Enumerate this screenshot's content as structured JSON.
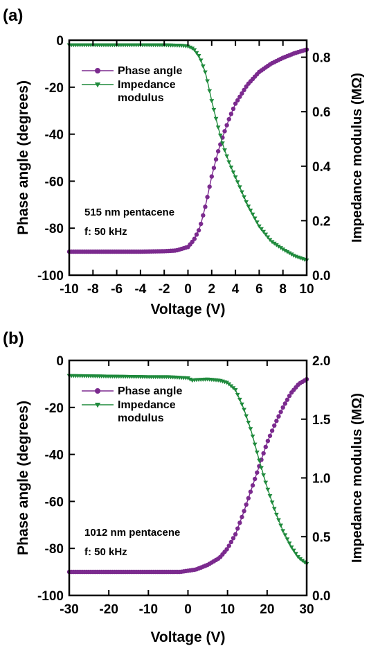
{
  "chart_data": [
    {
      "panel_label": "(a)",
      "type": "scatter",
      "xlabel": "Voltage (V)",
      "ylabel_left": "Phase angle  (degrees)",
      "ylabel_right": "Impedance modulus (MΩ)",
      "xlim": [
        -10,
        10
      ],
      "xticks": [
        -10,
        -8,
        -6,
        -4,
        -2,
        0,
        2,
        4,
        6,
        8,
        10
      ],
      "ylim_left": [
        -100,
        0
      ],
      "yticks_left": [
        0,
        -20,
        -40,
        -60,
        -80,
        -100
      ],
      "ylim_right": [
        0.0,
        0.8625
      ],
      "yticks_right": [
        "0.0",
        "0.2",
        "0.4",
        "0.6",
        "0.8"
      ],
      "annotation_lines": [
        "515 nm pentacene",
        "f: 50 kHz"
      ],
      "legend": [
        {
          "label": "Phase angle",
          "marker": "circle",
          "color": "#7b2a8e"
        },
        {
          "label_lines": [
            "Impedance",
            "modulus"
          ],
          "marker": "triangle-down",
          "color": "#1f8a3c"
        }
      ],
      "series": [
        {
          "name": "Phase angle",
          "axis": "left",
          "color": "#7b2a8e",
          "marker": "circle",
          "x": [
            -10,
            -8,
            -6,
            -4,
            -2,
            -1,
            0,
            0.5,
            1,
            1.5,
            2,
            2.5,
            3,
            3.5,
            4,
            5,
            6,
            7,
            8,
            9,
            10
          ],
          "y": [
            -90,
            -90,
            -90,
            -90,
            -89.8,
            -89.5,
            -88,
            -85,
            -80,
            -70,
            -58,
            -48,
            -40,
            -33,
            -27,
            -19,
            -13.5,
            -10,
            -7.5,
            -5.5,
            -4
          ]
        },
        {
          "name": "Impedance modulus",
          "axis": "right",
          "color": "#1f8a3c",
          "marker": "triangle-down",
          "x": [
            -10,
            -6,
            -2,
            -0.5,
            0,
            0.5,
            1,
            1.5,
            2,
            2.5,
            3,
            3.5,
            4,
            5,
            6,
            7,
            8,
            9,
            10
          ],
          "y": [
            0.845,
            0.845,
            0.845,
            0.843,
            0.84,
            0.83,
            0.8,
            0.74,
            0.64,
            0.55,
            0.47,
            0.41,
            0.36,
            0.26,
            0.18,
            0.125,
            0.095,
            0.07,
            0.055
          ]
        }
      ]
    },
    {
      "panel_label": "(b)",
      "type": "scatter",
      "xlabel": "Voltage (V)",
      "ylabel_left": "Phase angle  (degrees)",
      "ylabel_right": "Impedance modulus (MΩ)",
      "xlim": [
        -30,
        30
      ],
      "xticks": [
        -30,
        -20,
        -10,
        0,
        10,
        20,
        30
      ],
      "ylim_left": [
        -100,
        0
      ],
      "yticks_left": [
        0,
        -20,
        -40,
        -60,
        -80,
        -100
      ],
      "ylim_right": [
        0.0,
        2.0
      ],
      "yticks_right": [
        "0.0",
        "0.5",
        "1.0",
        "1.5",
        "2.0"
      ],
      "annotation_lines": [
        "1012 nm pentacene",
        "f: 50 kHz"
      ],
      "legend": [
        {
          "label": "Phase angle",
          "marker": "circle",
          "color": "#7b2a8e"
        },
        {
          "label_lines": [
            "Impedance",
            "modulus"
          ],
          "marker": "triangle-down",
          "color": "#1f8a3c"
        }
      ],
      "series": [
        {
          "name": "Phase angle",
          "axis": "left",
          "color": "#7b2a8e",
          "marker": "circle",
          "x": [
            -30,
            -20,
            -10,
            -2,
            0,
            2,
            5,
            8,
            10,
            12,
            14,
            16,
            18,
            20,
            22,
            24,
            26,
            28,
            30
          ],
          "y": [
            -90,
            -90,
            -90,
            -90,
            -89.5,
            -89,
            -87,
            -84,
            -80,
            -74,
            -65,
            -55,
            -45,
            -35,
            -27,
            -20,
            -14,
            -10,
            -8
          ]
        },
        {
          "name": "Impedance modulus",
          "axis": "right",
          "color": "#1f8a3c",
          "marker": "triangle-down",
          "x": [
            -30,
            -20,
            -10,
            -5,
            0,
            1,
            2,
            5,
            8,
            10,
            12,
            14,
            16,
            18,
            20,
            22,
            24,
            26,
            28,
            30
          ],
          "y": [
            1.87,
            1.865,
            1.86,
            1.86,
            1.85,
            1.83,
            1.835,
            1.84,
            1.83,
            1.81,
            1.75,
            1.6,
            1.4,
            1.15,
            0.92,
            0.72,
            0.55,
            0.42,
            0.32,
            0.27
          ]
        }
      ]
    }
  ]
}
